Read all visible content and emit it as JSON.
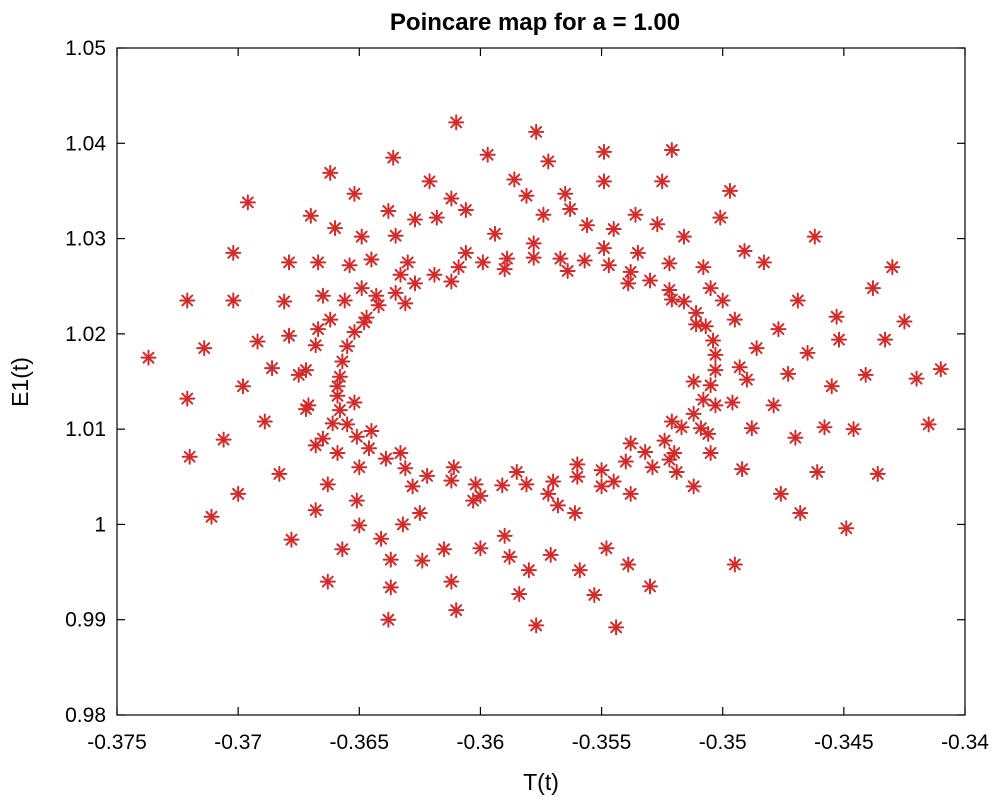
{
  "chart_data": {
    "type": "scatter",
    "title": "Poincare map for a = 1.00",
    "xlabel": "T(t)",
    "ylabel": "E1(t)",
    "xlim": [
      -0.375,
      -0.34
    ],
    "ylim": [
      0.98,
      1.05
    ],
    "x_ticks": [
      -0.375,
      -0.37,
      -0.365,
      -0.36,
      -0.355,
      -0.35,
      -0.345,
      -0.34
    ],
    "x_tick_labels": [
      "-0.375",
      "-0.37",
      "-0.365",
      "-0.36",
      "-0.355",
      "-0.35",
      "-0.345",
      "-0.34"
    ],
    "y_ticks": [
      0.98,
      0.99,
      1.0,
      1.01,
      1.02,
      1.03,
      1.04,
      1.05
    ],
    "y_tick_labels": [
      "0.98",
      "0.99",
      "1",
      "1.01",
      "1.02",
      "1.03",
      "1.04",
      "1.05"
    ],
    "grid": false,
    "marker": "asterisk",
    "marker_color": "#d42a2a",
    "series": [
      {
        "points": [
          [
            -0.3658,
            1.0155
          ],
          [
            -0.3657,
            1.0171
          ],
          [
            -0.3655,
            1.0187
          ],
          [
            -0.3652,
            1.0202
          ],
          [
            -0.3647,
            1.0217
          ],
          [
            -0.3642,
            1.023
          ],
          [
            -0.3635,
            1.0243
          ],
          [
            -0.3627,
            1.0253
          ],
          [
            -0.3619,
            1.0262
          ],
          [
            -0.3609,
            1.027
          ],
          [
            -0.3599,
            1.0275
          ],
          [
            -0.3589,
            1.0279
          ],
          [
            -0.3578,
            1.028
          ],
          [
            -0.3567,
            1.0279
          ],
          [
            -0.3557,
            1.0277
          ],
          [
            -0.3547,
            1.0272
          ],
          [
            -0.3538,
            1.0265
          ],
          [
            -0.353,
            1.0256
          ],
          [
            -0.3522,
            1.0246
          ],
          [
            -0.3516,
            1.0234
          ],
          [
            -0.3511,
            1.0222
          ],
          [
            -0.3507,
            1.0208
          ],
          [
            -0.3504,
            1.0193
          ],
          [
            -0.3503,
            1.0178
          ],
          [
            -0.3503,
            1.0162
          ],
          [
            -0.3505,
            1.0146
          ],
          [
            -0.3508,
            1.0131
          ],
          [
            -0.3512,
            1.0116
          ],
          [
            -0.3517,
            1.0102
          ],
          [
            -0.3524,
            1.0088
          ],
          [
            -0.3532,
            1.0076
          ],
          [
            -0.354,
            1.0066
          ],
          [
            -0.355,
            1.0057
          ],
          [
            -0.356,
            1.005
          ],
          [
            -0.357,
            1.0045
          ],
          [
            -0.3581,
            1.0042
          ],
          [
            -0.3591,
            1.0041
          ],
          [
            -0.3602,
            1.0042
          ],
          [
            -0.3612,
            1.0046
          ],
          [
            -0.3622,
            1.0051
          ],
          [
            -0.3631,
            1.0059
          ],
          [
            -0.3639,
            1.0069
          ],
          [
            -0.3646,
            1.008
          ],
          [
            -0.3651,
            1.0092
          ],
          [
            -0.3655,
            1.0105
          ],
          [
            -0.3658,
            1.012
          ],
          [
            -0.3659,
            1.0135
          ],
          [
            -0.3659,
            1.0145
          ],
          [
            -0.3652,
            1.0128
          ],
          [
            -0.3648,
            1.0212
          ],
          [
            -0.3631,
            1.0232
          ],
          [
            -0.3612,
            1.0255
          ],
          [
            -0.359,
            1.0268
          ],
          [
            -0.3564,
            1.0266
          ],
          [
            -0.3539,
            1.0253
          ],
          [
            -0.3521,
            1.0236
          ],
          [
            -0.3511,
            1.021
          ],
          [
            -0.3512,
            1.015
          ],
          [
            -0.3521,
            1.0108
          ],
          [
            -0.3538,
            1.0085
          ],
          [
            -0.356,
            1.0063
          ],
          [
            -0.3585,
            1.0055
          ],
          [
            -0.3611,
            1.006
          ],
          [
            -0.3633,
            1.0075
          ],
          [
            -0.3645,
            1.0098
          ],
          [
            -0.3672,
            1.0162
          ],
          [
            -0.3668,
            1.0188
          ],
          [
            -0.3662,
            1.0215
          ],
          [
            -0.3649,
            1.0248
          ],
          [
            -0.3633,
            1.0262
          ],
          [
            -0.3606,
            1.0285
          ],
          [
            -0.3578,
            1.0295
          ],
          [
            -0.3549,
            1.029
          ],
          [
            -0.3522,
            1.0274
          ],
          [
            -0.3505,
            1.0248
          ],
          [
            -0.3495,
            1.0215
          ],
          [
            -0.3493,
            1.0165
          ],
          [
            -0.3496,
            1.0128
          ],
          [
            -0.3506,
            1.0095
          ],
          [
            -0.3522,
            1.0068
          ],
          [
            -0.3545,
            1.0045
          ],
          [
            -0.3572,
            1.0032
          ],
          [
            -0.36,
            1.003
          ],
          [
            -0.3628,
            1.004
          ],
          [
            -0.365,
            1.006
          ],
          [
            -0.3665,
            1.009
          ],
          [
            -0.3671,
            1.0125
          ],
          [
            -0.3737,
            1.0175
          ],
          [
            -0.3721,
            1.0235
          ],
          [
            -0.3721,
            1.0132
          ],
          [
            -0.372,
            1.0071
          ],
          [
            -0.3714,
            1.0185
          ],
          [
            -0.3711,
            1.0008
          ],
          [
            -0.3706,
            1.0089
          ],
          [
            -0.3702,
            1.0285
          ],
          [
            -0.3702,
            1.0235
          ],
          [
            -0.37,
            1.0032
          ],
          [
            -0.3698,
            1.0145
          ],
          [
            -0.3696,
            1.0338
          ],
          [
            -0.3692,
            1.0192
          ],
          [
            -0.3689,
            1.0108
          ],
          [
            -0.3686,
            1.0164
          ],
          [
            -0.3683,
            1.0053
          ],
          [
            -0.3681,
            1.0234
          ],
          [
            -0.3679,
            1.0275
          ],
          [
            -0.3679,
            1.0198
          ],
          [
            -0.3678,
            0.9984
          ],
          [
            -0.3675,
            1.0157
          ],
          [
            -0.3672,
            1.0121
          ],
          [
            -0.367,
            1.0324
          ],
          [
            -0.3668,
            1.0083
          ],
          [
            -0.3668,
            1.0015
          ],
          [
            -0.3667,
            1.0275
          ],
          [
            -0.3667,
            1.0205
          ],
          [
            -0.3665,
            1.024
          ],
          [
            -0.3663,
            1.0042
          ],
          [
            -0.3663,
            0.994
          ],
          [
            -0.3662,
            1.0369
          ],
          [
            -0.3661,
            1.0106
          ],
          [
            -0.366,
            1.0311
          ],
          [
            -0.3659,
            1.0075
          ],
          [
            -0.3657,
            0.9974
          ],
          [
            -0.3656,
            1.0235
          ],
          [
            -0.3654,
            1.0272
          ],
          [
            -0.3652,
            1.0347
          ],
          [
            -0.3651,
            1.0025
          ],
          [
            -0.365,
            0.9999
          ],
          [
            -0.3649,
            1.0302
          ],
          [
            -0.3645,
            1.0278
          ],
          [
            -0.3643,
            1.024
          ],
          [
            -0.3641,
            0.9985
          ],
          [
            -0.3638,
            0.99
          ],
          [
            -0.3638,
            1.0329
          ],
          [
            -0.3637,
            0.9934
          ],
          [
            -0.3637,
            0.9963
          ],
          [
            -0.3636,
            1.0385
          ],
          [
            -0.3635,
            1.0303
          ],
          [
            -0.3632,
            1.0
          ],
          [
            -0.363,
            1.0275
          ],
          [
            -0.3627,
            1.032
          ],
          [
            -0.3625,
            1.0012
          ],
          [
            -0.3624,
            0.9962
          ],
          [
            -0.3621,
            1.036
          ],
          [
            -0.3618,
            1.0322
          ],
          [
            -0.3615,
            0.9974
          ],
          [
            -0.3612,
            1.0342
          ],
          [
            -0.3612,
            0.994
          ],
          [
            -0.361,
            0.991
          ],
          [
            -0.361,
            1.0422
          ],
          [
            -0.3606,
            1.033
          ],
          [
            -0.3603,
            1.0025
          ],
          [
            -0.36,
            0.9975
          ],
          [
            -0.3597,
            1.0388
          ],
          [
            -0.3594,
            1.0305
          ],
          [
            -0.359,
            0.9988
          ],
          [
            -0.3588,
            0.9966
          ],
          [
            -0.3586,
            1.0362
          ],
          [
            -0.3584,
            0.9927
          ],
          [
            -0.3581,
            1.0345
          ],
          [
            -0.358,
            0.9952
          ],
          [
            -0.3577,
            1.0412
          ],
          [
            -0.3577,
            0.9894
          ],
          [
            -0.3574,
            1.0325
          ],
          [
            -0.3572,
            1.0381
          ],
          [
            -0.3571,
            0.9968
          ],
          [
            -0.3568,
            1.002
          ],
          [
            -0.3565,
            1.0347
          ],
          [
            -0.3563,
            1.0331
          ],
          [
            -0.3561,
            1.0012
          ],
          [
            -0.3559,
            0.9952
          ],
          [
            -0.3556,
            1.0314
          ],
          [
            -0.3553,
            0.9926
          ],
          [
            -0.355,
            1.004
          ],
          [
            -0.3549,
            1.0391
          ],
          [
            -0.3549,
            1.036
          ],
          [
            -0.3548,
            0.9975
          ],
          [
            -0.3545,
            1.031
          ],
          [
            -0.3544,
            0.9892
          ],
          [
            -0.3539,
            0.9958
          ],
          [
            -0.3538,
            1.0032
          ],
          [
            -0.3536,
            1.0325
          ],
          [
            -0.3535,
            1.0285
          ],
          [
            -0.353,
            0.9935
          ],
          [
            -0.3529,
            1.006
          ],
          [
            -0.3527,
            1.0315
          ],
          [
            -0.3525,
            1.036
          ],
          [
            -0.3521,
            1.0393
          ],
          [
            -0.352,
            1.0075
          ],
          [
            -0.3519,
            1.0055
          ],
          [
            -0.3516,
            1.0302
          ],
          [
            -0.3512,
            1.004
          ],
          [
            -0.3509,
            1.0101
          ],
          [
            -0.3508,
            1.027
          ],
          [
            -0.3505,
            1.0075
          ],
          [
            -0.3503,
            1.0125
          ],
          [
            -0.3501,
            1.0322
          ],
          [
            -0.35,
            1.0235
          ],
          [
            -0.3497,
            1.035
          ],
          [
            -0.3495,
            0.9958
          ],
          [
            -0.3492,
            1.0058
          ],
          [
            -0.3491,
            1.0287
          ],
          [
            -0.349,
            1.0152
          ],
          [
            -0.3488,
            1.0101
          ],
          [
            -0.3486,
            1.0185
          ],
          [
            -0.3483,
            1.0275
          ],
          [
            -0.3479,
            1.0125
          ],
          [
            -0.3477,
            1.0205
          ],
          [
            -0.3476,
            1.0032
          ],
          [
            -0.3473,
            1.0158
          ],
          [
            -0.347,
            1.0091
          ],
          [
            -0.3469,
            1.0235
          ],
          [
            -0.3468,
            1.0012
          ],
          [
            -0.3465,
            1.018
          ],
          [
            -0.3462,
            1.0302
          ],
          [
            -0.3461,
            1.0055
          ],
          [
            -0.3458,
            1.0102
          ],
          [
            -0.3455,
            1.0145
          ],
          [
            -0.3453,
            1.0218
          ],
          [
            -0.3452,
            1.0194
          ],
          [
            -0.3449,
            0.9996
          ],
          [
            -0.3446,
            1.01
          ],
          [
            -0.3441,
            1.0157
          ],
          [
            -0.3438,
            1.0248
          ],
          [
            -0.3436,
            1.0053
          ],
          [
            -0.3433,
            1.0194
          ],
          [
            -0.343,
            1.027
          ],
          [
            -0.3425,
            1.0213
          ],
          [
            -0.342,
            1.0153
          ],
          [
            -0.3415,
            1.0105
          ],
          [
            -0.341,
            1.0163
          ]
        ]
      }
    ]
  }
}
